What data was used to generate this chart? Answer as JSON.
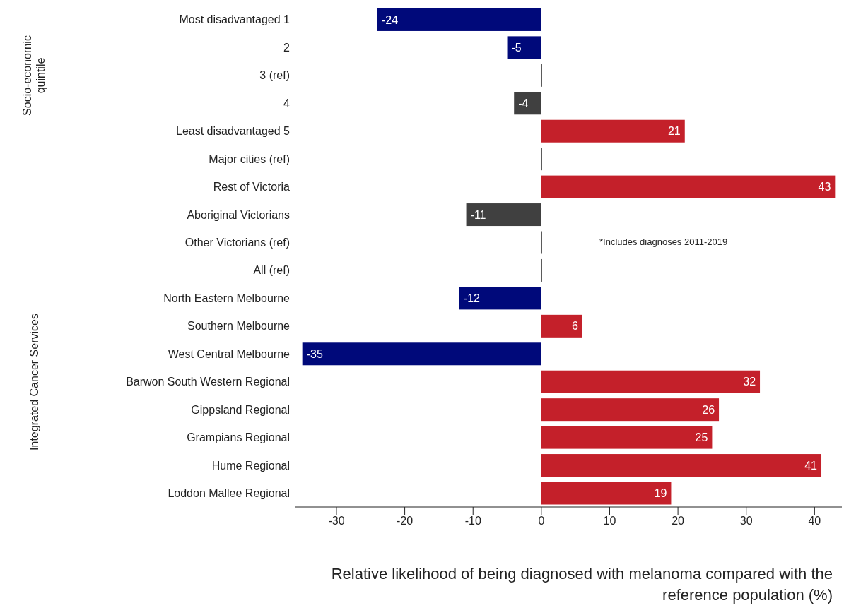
{
  "chart_data": {
    "type": "bar",
    "orientation": "horizontal",
    "xlabel": "Relative likelihood of being diagnosed with melanoma compared with the reference population (%)",
    "categories": [
      "Most disadvantaged 1",
      "2",
      "3 (ref)",
      "4",
      "Least disadvantaged 5",
      "Major cities (ref)",
      "Rest of Victoria",
      "Aboriginal Victorians",
      "Other Victorians (ref)",
      "All (ref)",
      "North Eastern Melbourne",
      "Southern Melbourne",
      "West Central Melbourne",
      "Barwon South Western Regional",
      "Gippsland Regional",
      "Grampians Regional",
      "Hume Regional",
      "Loddon Mallee Regional"
    ],
    "values": [
      -24,
      -5,
      0,
      -4,
      21,
      0,
      43,
      -11,
      0,
      0,
      -12,
      6,
      -35,
      32,
      26,
      25,
      41,
      19
    ],
    "value_labels": [
      "-24",
      "-5",
      null,
      "-4",
      "21",
      null,
      "43",
      "-11",
      null,
      null,
      "-12",
      "6",
      "-35",
      "32",
      "26",
      "25",
      "41",
      "19"
    ],
    "colors": [
      "#00097a",
      "#00097a",
      "#404040",
      "#404040",
      "#c4202a",
      "#404040",
      "#c4202a",
      "#404040",
      "#404040",
      "#404040",
      "#00097a",
      "#c4202a",
      "#00097a",
      "#c4202a",
      "#c4202a",
      "#c4202a",
      "#c4202a",
      "#c4202a"
    ],
    "xlim": [
      -36,
      44
    ],
    "xticks": [
      -30,
      -20,
      -10,
      0,
      10,
      20,
      30,
      40
    ],
    "annotations": [
      "Socio-economic quintile",
      "Integrated Cancer Services",
      "*Includes diagnoses 2011-2019"
    ]
  }
}
